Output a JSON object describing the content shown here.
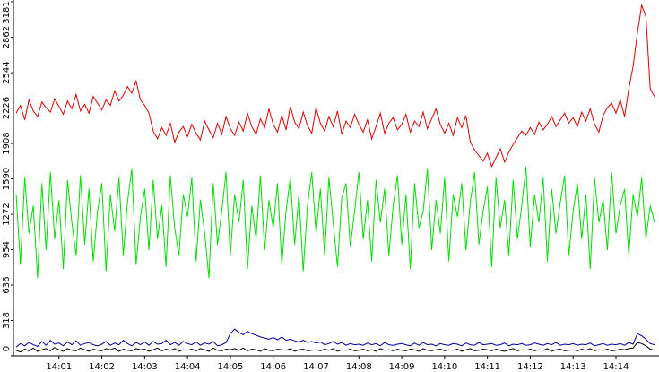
{
  "chart_data": {
    "type": "line",
    "categories": [
      null,
      null,
      null,
      null,
      null,
      null,
      null,
      null,
      null,
      null,
      "14:01",
      null,
      null,
      null,
      null,
      null,
      null,
      null,
      null,
      null,
      "14:02",
      null,
      null,
      null,
      null,
      null,
      null,
      null,
      null,
      null,
      "14:03",
      null,
      null,
      null,
      null,
      null,
      null,
      null,
      null,
      null,
      "14:04",
      null,
      null,
      null,
      null,
      null,
      null,
      null,
      null,
      null,
      "14:05",
      null,
      null,
      null,
      null,
      null,
      null,
      null,
      null,
      null,
      "14:06",
      null,
      null,
      null,
      null,
      null,
      null,
      null,
      null,
      null,
      "14:07",
      null,
      null,
      null,
      null,
      null,
      null,
      null,
      null,
      null,
      "14:08",
      null,
      null,
      null,
      null,
      null,
      null,
      null,
      null,
      null,
      "14:09",
      null,
      null,
      null,
      null,
      null,
      null,
      null,
      null,
      null,
      "14:10",
      null,
      null,
      null,
      null,
      null,
      null,
      null,
      null,
      null,
      "14:11",
      null,
      null,
      null,
      null,
      null,
      null,
      null,
      null,
      null,
      "14:12",
      null,
      null,
      null,
      null,
      null,
      null,
      null,
      null,
      null,
      "14:13",
      null,
      null,
      null,
      null,
      null,
      null,
      null,
      null,
      null,
      "14:14",
      null,
      null,
      null,
      null,
      null,
      null,
      null,
      null,
      null
    ],
    "series": [
      {
        "color": "#e00000",
        "values": [
          2180,
          2250,
          2120,
          2300,
          2200,
          2150,
          2280,
          2230,
          2190,
          2310,
          2240,
          2170,
          2290,
          2220,
          2350,
          2200,
          2260,
          2180,
          2330,
          2270,
          2210,
          2300,
          2250,
          2380,
          2290,
          2340,
          2420,
          2360,
          2470,
          2300,
          2250,
          2180,
          2020,
          1950,
          2050,
          1980,
          2090,
          1920,
          2010,
          2060,
          1970,
          2080,
          2000,
          1940,
          2110,
          2030,
          1960,
          2090,
          1990,
          2150,
          2040,
          1980,
          2100,
          2020,
          2180,
          2060,
          1990,
          2130,
          2050,
          2220,
          2080,
          2010,
          2160,
          2030,
          2240,
          2100,
          2040,
          2190,
          2070,
          2000,
          2230,
          2090,
          2020,
          2150,
          2060,
          2200,
          1990,
          2110,
          2050,
          2170,
          2080,
          2010,
          2120,
          1950,
          2060,
          2180,
          2000,
          2090,
          2140,
          2030,
          2080,
          2170,
          2010,
          2110,
          2060,
          2190,
          2040,
          2130,
          2220,
          2080,
          2000,
          2090,
          1980,
          2140,
          2050,
          2160,
          1920,
          1850,
          1800,
          1750,
          1820,
          1700,
          1780,
          1860,
          1740,
          1830,
          1900,
          1960,
          2020,
          1980,
          2050,
          1990,
          2100,
          2030,
          2080,
          2150,
          2060,
          2120,
          2180,
          2090,
          2140,
          2060,
          2190,
          2110,
          2220,
          2080,
          2010,
          2160,
          2230,
          2270,
          2180,
          2300,
          2150,
          2400,
          2600,
          2900,
          3150,
          3050,
          2400,
          2330
        ]
      },
      {
        "color": "#00e000",
        "values": [
          1450,
          820,
          1600,
          1100,
          1350,
          700,
          1550,
          950,
          1650,
          1050,
          1400,
          780,
          1580,
          1200,
          900,
          1620,
          1000,
          1500,
          850,
          1300,
          1550,
          760,
          1450,
          1120,
          1600,
          900,
          1380,
          1680,
          820,
          1250,
          1500,
          950,
          1580,
          1050,
          1350,
          800,
          1620,
          1150,
          900,
          1450,
          1250,
          1600,
          850,
          1400,
          1100,
          700,
          1550,
          1000,
          1300,
          1650,
          900,
          1450,
          1200,
          1580,
          780,
          1350,
          1050,
          1620,
          950,
          1400,
          1150,
          1550,
          820,
          1300,
          1600,
          1000,
          1450,
          760,
          1350,
          1650,
          1100,
          1500,
          900,
          1600,
          1200,
          800,
          1420,
          1550,
          980,
          1300,
          1650,
          1050,
          1400,
          850,
          1580,
          1200,
          1500,
          900,
          1350,
          1620,
          1000,
          1450,
          780,
          1550,
          1150,
          1300,
          1680,
          950,
          1400,
          1100,
          1600,
          850,
          1450,
          1250,
          1550,
          950,
          1380,
          1650,
          1000,
          1300,
          1520,
          800,
          1600,
          1150,
          1400,
          900,
          1580,
          1050,
          1350,
          1700,
          980,
          1450,
          1200,
          1600,
          850,
          1500,
          1100,
          1380,
          1620,
          900,
          1300,
          1550,
          1050,
          1450,
          780,
          1600,
          1200,
          1400,
          950,
          1650,
          1100,
          1350,
          1500,
          900,
          1450,
          1250,
          1600,
          1050,
          1350,
          1200
        ]
      },
      {
        "color": "#0000a0",
        "values": [
          80,
          110,
          90,
          120,
          100,
          85,
          130,
          95,
          140,
          105,
          115,
          90,
          125,
          100,
          135,
          95,
          110,
          120,
          100,
          90,
          105,
          130,
          95,
          115,
          100,
          140,
          110,
          90,
          120,
          100,
          125,
          95,
          130,
          105,
          110,
          140,
          100,
          120,
          95,
          130,
          110,
          100,
          125,
          95,
          115,
          105,
          130,
          90,
          100,
          120,
          200,
          240,
          210,
          190,
          220,
          200,
          185,
          170,
          160,
          150,
          165,
          145,
          170,
          140,
          150,
          135,
          125,
          140,
          120,
          130,
          115,
          125,
          100,
          110,
          130,
          105,
          120,
          95,
          110,
          100,
          105,
          95,
          115,
          100,
          110,
          90,
          120,
          100,
          95,
          105,
          110,
          100,
          90,
          115,
          95,
          120,
          100,
          105,
          90,
          110,
          100,
          95,
          110,
          105,
          90,
          115,
          100,
          95,
          120,
          100,
          105,
          110,
          95,
          100,
          115,
          90,
          105,
          100,
          110,
          95,
          100,
          115,
          105,
          95,
          110,
          100,
          120,
          95,
          105,
          100,
          110,
          95,
          105,
          100,
          115,
          90,
          100,
          110,
          95,
          105,
          100,
          110,
          95,
          120,
          105,
          200,
          180,
          150,
          110,
          100
        ]
      },
      {
        "color": "#000000",
        "values": [
          50,
          35,
          60,
          45,
          70,
          40,
          55,
          65,
          45,
          75,
          55,
          40,
          65,
          50,
          45,
          70,
          55,
          40,
          60,
          50,
          45,
          65,
          55,
          70,
          40,
          60,
          50,
          45,
          65,
          55,
          60,
          40,
          55,
          70,
          45,
          60,
          50,
          65,
          40,
          55,
          50,
          60,
          45,
          65,
          55,
          40,
          70,
          50,
          45,
          60,
          55,
          65,
          50,
          70,
          45,
          60,
          55,
          40,
          65,
          50,
          45,
          60,
          55,
          50,
          65,
          40,
          55,
          60,
          45,
          50,
          55,
          45,
          60,
          50,
          65,
          40,
          55,
          50,
          60,
          45,
          50,
          60,
          45,
          55,
          40,
          65,
          50,
          55,
          45,
          60,
          50,
          45,
          60,
          55,
          40,
          65,
          50,
          45,
          55,
          60,
          45,
          55,
          50,
          60,
          40,
          55,
          65,
          45,
          50,
          60,
          55,
          45,
          60,
          50,
          40,
          55,
          65,
          45,
          55,
          50,
          60,
          45,
          55,
          50,
          65,
          40,
          55,
          60,
          45,
          50,
          55,
          45,
          60,
          50,
          65,
          45,
          55,
          50,
          60,
          45,
          50,
          60,
          55,
          65,
          70,
          120,
          110,
          90,
          60,
          50
        ]
      }
    ],
    "ylim": [
      0,
      3181
    ],
    "yticks": [
      0,
      318,
      636,
      954,
      1272,
      1590,
      1908,
      2226,
      2544,
      2862,
      3181
    ],
    "grid": false
  }
}
